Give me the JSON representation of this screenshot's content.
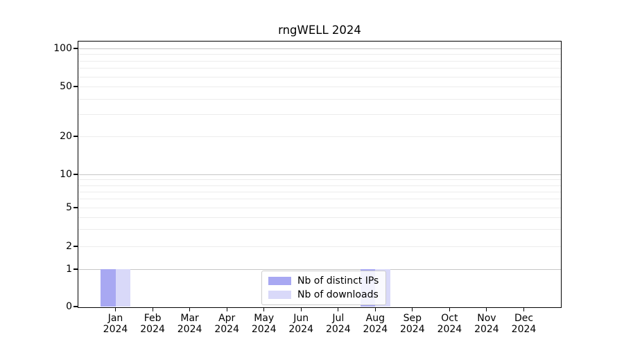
{
  "chart_data": {
    "type": "bar",
    "title": "rngWELL 2024",
    "categories": [
      "Jan",
      "Feb",
      "Mar",
      "Apr",
      "May",
      "Jun",
      "Jul",
      "Aug",
      "Sep",
      "Oct",
      "Nov",
      "Dec"
    ],
    "x_tick_year": "2024",
    "series": [
      {
        "name": "Nb of distinct IPs",
        "color": "#a8a8f2",
        "values": [
          1,
          0,
          0,
          0,
          0,
          0,
          0,
          1,
          0,
          0,
          0,
          0
        ]
      },
      {
        "name": "Nb of downloads",
        "color": "#d9d9f9",
        "values": [
          1,
          0,
          0,
          0,
          0,
          0,
          0,
          1,
          0,
          0,
          0,
          0
        ]
      }
    ],
    "yscale": "symlog",
    "y_major_ticks": [
      0,
      1,
      2,
      5,
      10,
      20,
      50,
      100
    ],
    "y_dark_gridlines": [
      1,
      10,
      100
    ],
    "y_minor_gridlines": [
      3,
      4,
      6,
      7,
      8,
      9,
      30,
      40,
      60,
      70,
      80,
      90
    ],
    "ylim": [
      0,
      110
    ],
    "grid": "horizontal, major and minor",
    "legend_position": "lower center",
    "plot_bg": "#ffffff",
    "spine_color": "#000000",
    "major_grid_color": "#c6c6c6",
    "minor_grid_color": "#ececec"
  }
}
